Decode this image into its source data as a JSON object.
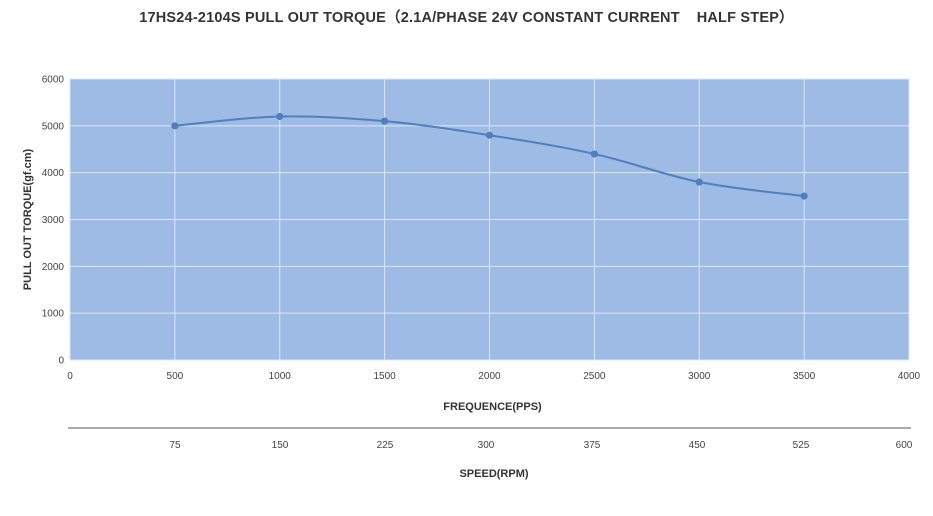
{
  "chart_data": {
    "type": "line",
    "title": "17HS24-2104S PULL OUT TORQUE（2.1A/PHASE 24V CONSTANT CURRENT    HALF STEP）",
    "xlabel": "FREQUENCE(PPS)",
    "ylabel": "PULL OUT TORQUE(gf.cm)",
    "secondary_xlabel": "SPEED(RPM)",
    "xlim": [
      0,
      4000
    ],
    "ylim": [
      0,
      6000
    ],
    "x_ticks": [
      "0",
      "500",
      "1000",
      "1500",
      "2000",
      "2500",
      "3000",
      "3500",
      "4000"
    ],
    "y_ticks": [
      "0",
      "1000",
      "2000",
      "3000",
      "4000",
      "5000",
      "6000"
    ],
    "secondary_x_ticks": [
      "75",
      "150",
      "225",
      "300",
      "375",
      "450",
      "525",
      "600"
    ],
    "grid": true,
    "series": [
      {
        "x": [
          500,
          1000,
          1500,
          2000,
          2500,
          3000,
          3500
        ],
        "values": [
          5000,
          5200,
          5100,
          4800,
          4400,
          3800,
          3500
        ]
      }
    ],
    "colors": {
      "plot_bg": "#9dbbe5",
      "line": "#4f7fbd",
      "grid": "#dce7f6"
    }
  }
}
